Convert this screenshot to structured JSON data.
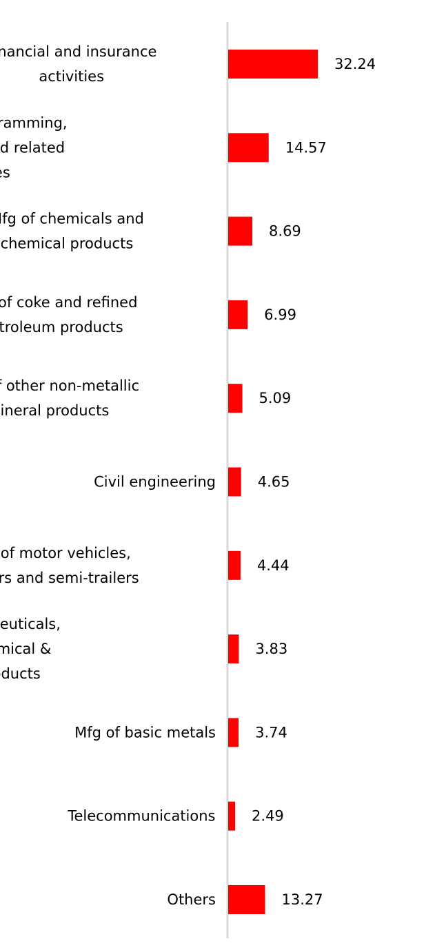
{
  "chart_data": {
    "type": "bar",
    "orientation": "horizontal",
    "categories": [
      [
        "Financial and insurance",
        "activities"
      ],
      [
        "Computer programming,",
        "consultancy and related",
        "activities"
      ],
      [
        "Mfg of chemicals and",
        "chemical products"
      ],
      [
        "Mfg of coke and refined",
        "petroleum products"
      ],
      [
        "Mfg of other non-metallic",
        "mineral products"
      ],
      [
        "Civil engineering"
      ],
      [
        "Mfg of motor vehicles,",
        "trailers and semi-trailers"
      ],
      [
        "Mfg of pharmaceuticals,",
        "medicinal chemical &",
        "botanical products"
      ],
      [
        "Mfg of basic metals"
      ],
      [
        "Telecommunications"
      ],
      [
        "Others"
      ]
    ],
    "values": [
      32.24,
      14.57,
      8.69,
      6.99,
      5.09,
      4.65,
      4.44,
      3.83,
      3.74,
      2.49,
      13.27
    ],
    "value_labels": [
      "32.24",
      "14.57",
      "8.69",
      "6.99",
      "5.09",
      "4.65",
      "4.44",
      "3.83",
      "3.74",
      "2.49",
      "13.27"
    ],
    "bar_color": "#ff0000",
    "axis_color": "#d9d9d9",
    "grid": false,
    "legend": "none",
    "xlim": [
      0,
      32.24
    ]
  }
}
